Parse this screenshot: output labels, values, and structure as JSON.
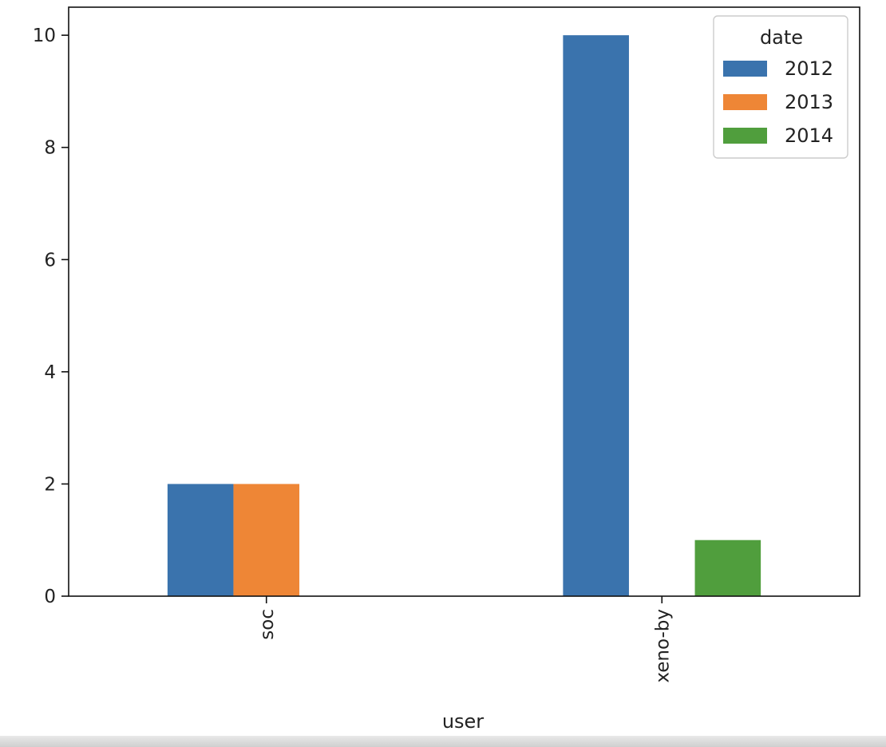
{
  "chart_data": {
    "type": "bar",
    "categories": [
      "soc",
      "xeno-by"
    ],
    "series": [
      {
        "name": "2012",
        "values": [
          2,
          10
        ]
      },
      {
        "name": "2013",
        "values": [
          2,
          0
        ]
      },
      {
        "name": "2014",
        "values": [
          0,
          1
        ]
      }
    ],
    "colors": [
      "#3a73ad",
      "#ee8636",
      "#509e3d"
    ],
    "xlabel": "user",
    "ylabel": "",
    "ylim": [
      0,
      10.5
    ],
    "yticks": [
      "0",
      "2",
      "4",
      "6",
      "8",
      "10"
    ],
    "legend": {
      "title": "date",
      "placement": "top-right"
    },
    "grid": false
  }
}
